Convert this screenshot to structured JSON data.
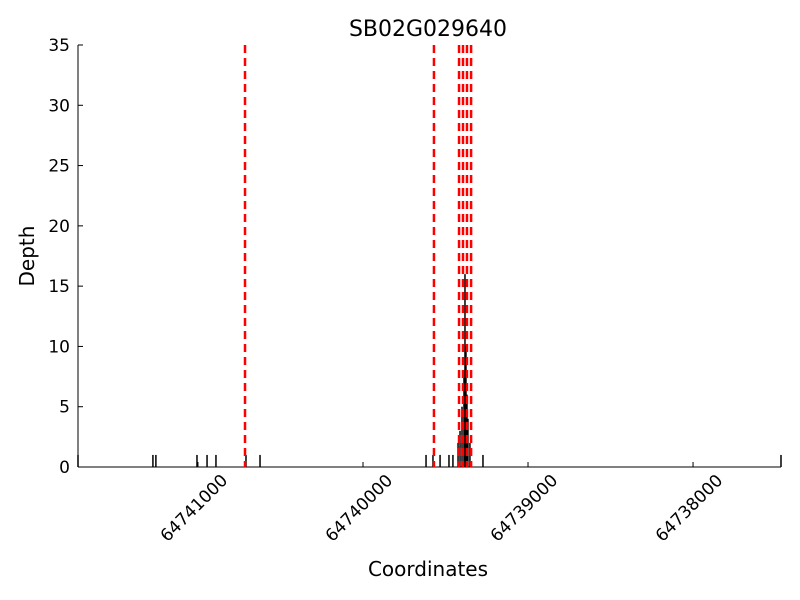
{
  "chart_data": {
    "type": "spike",
    "title": "SB02G029640",
    "x_label": "Coordinates",
    "y_label": "Depth",
    "x": [
      64741727,
      64741273,
      64741255,
      64741006,
      64740945,
      64740891,
      64740709,
      64740624,
      64739618,
      64739576,
      64739533,
      64739479,
      64739455,
      64739424,
      64739412,
      64739400,
      64739388,
      64739382,
      64739376,
      64739370,
      64739364,
      64739352,
      64739273,
      64737467
    ],
    "values": [
      1,
      1,
      1,
      1,
      1,
      1,
      1,
      1,
      1,
      1,
      1,
      1,
      1,
      2,
      3,
      5,
      8,
      16,
      10,
      6,
      4,
      2,
      1,
      1
    ],
    "color": "#000000",
    "markers": {
      "x": [
        64740715,
        64739570,
        64739418,
        64739394,
        64739370,
        64739345
      ],
      "color": "#ff0000"
    },
    "xlim": [
      64741727,
      64737467
    ],
    "xticks": [
      64741000,
      64740000,
      64739000,
      64738000
    ],
    "ylim": [
      0,
      35
    ],
    "yticks": [
      0,
      5,
      10,
      15,
      20,
      25,
      30,
      35
    ]
  }
}
